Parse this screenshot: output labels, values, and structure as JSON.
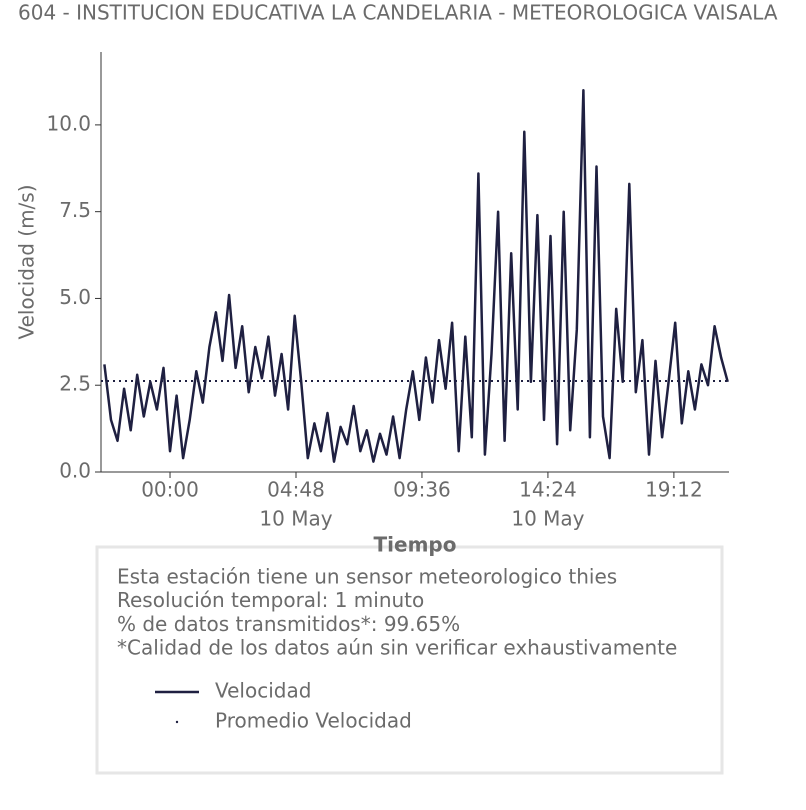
{
  "chart_data": {
    "type": "line",
    "title": "604 - INSTITUCION EDUCATIVA LA CANDELARIA - METEOROLOGICA VAISALA",
    "y_label": "Velocidad (m/s)",
    "x_label": "Tiempo",
    "x": [
      -2.5,
      -2.25,
      -2,
      -1.75,
      -1.5,
      -1.25,
      -1,
      -0.75,
      -0.5,
      -0.25,
      0,
      0.25,
      0.5,
      0.75,
      1,
      1.25,
      1.5,
      1.75,
      2,
      2.25,
      2.5,
      2.75,
      3,
      3.25,
      3.5,
      3.75,
      4,
      4.25,
      4.5,
      4.75,
      5,
      5.25,
      5.5,
      5.75,
      6,
      6.25,
      6.5,
      6.75,
      7,
      7.25,
      7.5,
      7.75,
      8,
      8.25,
      8.5,
      8.75,
      9,
      9.25,
      9.5,
      9.75,
      10,
      10.25,
      10.5,
      10.75,
      11,
      11.25,
      11.5,
      11.75,
      12,
      12.25,
      12.5,
      12.75,
      13,
      13.25,
      13.5,
      13.75,
      14,
      14.25,
      14.5,
      14.75,
      15,
      15.25,
      15.5,
      15.75,
      16,
      16.25,
      16.5,
      16.75,
      17,
      17.25,
      17.5,
      17.75,
      18,
      18.25,
      18.5,
      18.75,
      19,
      19.25,
      19.5,
      19.75,
      20,
      20.25,
      20.5,
      20.75,
      21,
      21.25
    ],
    "series": [
      {
        "name": "Velocidad",
        "color": "#1f2041",
        "values": [
          3.1,
          1.5,
          0.9,
          2.4,
          1.2,
          2.8,
          1.6,
          2.6,
          1.8,
          3.0,
          0.6,
          2.2,
          0.4,
          1.5,
          2.9,
          2.0,
          3.6,
          4.6,
          3.2,
          5.1,
          3.0,
          4.2,
          2.3,
          3.6,
          2.7,
          3.9,
          2.2,
          3.4,
          1.8,
          4.5,
          2.6,
          0.4,
          1.4,
          0.6,
          1.7,
          0.3,
          1.3,
          0.8,
          1.9,
          0.6,
          1.2,
          0.3,
          1.1,
          0.5,
          1.6,
          0.4,
          1.8,
          2.9,
          1.5,
          3.3,
          2.0,
          3.8,
          2.4,
          4.3,
          0.6,
          3.9,
          1.0,
          8.6,
          0.5,
          3.4,
          7.5,
          0.9,
          6.3,
          1.8,
          9.8,
          2.6,
          7.4,
          1.5,
          6.8,
          0.8,
          7.5,
          1.2,
          4.1,
          11.0,
          1.0,
          8.8,
          1.6,
          0.4,
          4.7,
          2.6,
          8.3,
          2.3,
          3.8,
          0.5,
          3.2,
          1.0,
          2.6,
          4.3,
          1.4,
          2.9,
          1.8,
          3.1,
          2.5,
          4.2,
          3.3,
          2.6
        ]
      }
    ],
    "reference_lines": [
      {
        "name": "Promedio Velocidad",
        "value": 2.62,
        "color": "#1f2041",
        "style": "dotted"
      }
    ],
    "xlim": [
      -2.63,
      21.3
    ],
    "xticks": [
      {
        "value": 0,
        "label": "00:00"
      },
      {
        "value": 4.8,
        "label": "04:48",
        "sublabel": "10 May"
      },
      {
        "value": 9.6,
        "label": "09:36"
      },
      {
        "value": 14.4,
        "label": "14:24",
        "sublabel": "10 May"
      },
      {
        "value": 19.2,
        "label": "19:12"
      }
    ],
    "ylim": [
      0,
      12.1
    ],
    "yticks": [
      {
        "value": 0,
        "label": "0.0"
      },
      2.5,
      {
        "value": 5,
        "label": "5.0"
      },
      7.5,
      {
        "value": 10,
        "label": "10.0"
      }
    ],
    "grid": false,
    "info_lines": [
      "Esta estación tiene un sensor meteorologico thies",
      "Resolución temporal: 1 minuto",
      "% de datos transmitidos*: 99.65%",
      "*Calidad de los datos aún sin verificar exhaustivamente"
    ]
  }
}
